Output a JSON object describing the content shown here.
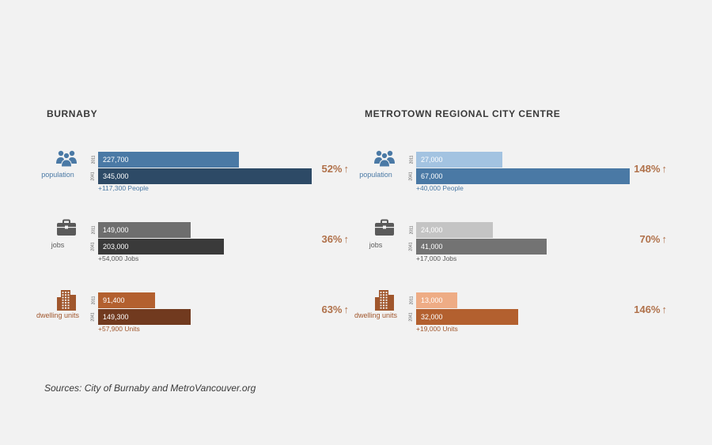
{
  "chart_data": [
    {
      "type": "bar",
      "title": "BURNABY",
      "max_value": 345000,
      "metrics": [
        {
          "icon": "people-icon",
          "label": "population",
          "year_labels": [
            "2011",
            "2041"
          ],
          "values": [
            227700,
            345000
          ],
          "value_labels": [
            "227,700",
            "345,000"
          ],
          "delta": "+117,300 People",
          "percent": "52%",
          "arrow": "↑",
          "colors": [
            "#4a79a5",
            "#2d4a66"
          ],
          "label_color": "#4a79a5"
        },
        {
          "icon": "briefcase-icon",
          "label": "jobs",
          "year_labels": [
            "2011",
            "2041"
          ],
          "values": [
            149000,
            203000
          ],
          "value_labels": [
            "149,000",
            "203,000"
          ],
          "delta": "+54,000 Jobs",
          "percent": "36%",
          "arrow": "↑",
          "colors": [
            "#6e6e6e",
            "#3a3a3a"
          ],
          "label_color": "#5a5a5a"
        },
        {
          "icon": "building-icon",
          "label": "dwelling units",
          "year_labels": [
            "2011",
            "2041"
          ],
          "values": [
            91400,
            149300
          ],
          "value_labels": [
            "91,400",
            "149,300"
          ],
          "delta": "+57,900 Units",
          "percent": "63%",
          "arrow": "↑",
          "colors": [
            "#b3602f",
            "#713a1f"
          ],
          "label_color": "#a0562c"
        }
      ]
    },
    {
      "type": "bar",
      "title": "METROTOWN REGIONAL CITY CENTRE",
      "max_value": 67000,
      "metrics": [
        {
          "icon": "people-icon",
          "label": "population",
          "year_labels": [
            "2011",
            "2041"
          ],
          "values": [
            27000,
            67000
          ],
          "value_labels": [
            "27,000",
            "67,000"
          ],
          "delta": "+40,000 People",
          "percent": "148%",
          "arrow": "↑",
          "colors": [
            "#a3c3e1",
            "#4a79a5"
          ],
          "label_color": "#4a79a5"
        },
        {
          "icon": "briefcase-icon",
          "label": "jobs",
          "year_labels": [
            "2011",
            "2041"
          ],
          "values": [
            24000,
            41000
          ],
          "value_labels": [
            "24,000",
            "41,000"
          ],
          "delta": "+17,000 Jobs",
          "percent": "70%",
          "arrow": "↑",
          "colors": [
            "#c4c4c4",
            "#737373"
          ],
          "label_color": "#5a5a5a"
        },
        {
          "icon": "building-icon",
          "label": "dwelling units",
          "year_labels": [
            "2011",
            "2041"
          ],
          "values": [
            13000,
            32000
          ],
          "value_labels": [
            "13,000",
            "32,000"
          ],
          "delta": "+19,000 Units",
          "percent": "146%",
          "arrow": "↑",
          "colors": [
            "#eeac85",
            "#b3602f"
          ],
          "label_color": "#a0562c"
        }
      ]
    }
  ],
  "source": "Sources: City of Burnaby and MetroVancouver.org"
}
